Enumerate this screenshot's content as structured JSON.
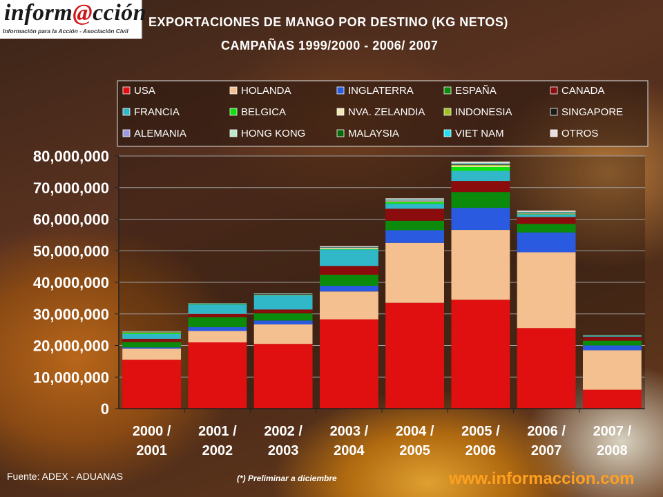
{
  "logo": {
    "brand_pre": "inform",
    "brand_at": "@",
    "brand_post": "cción",
    "tagline": "Información para la Acción - Asociación Civil"
  },
  "title_line1": "EXPORTACIONES DE MANGO POR DESTINO (KG NETOS)",
  "title_line2": "CAMPAÑAS 1999/2000 -  2006/ 2007",
  "footer": {
    "source": "Fuente: ADEX - ADUANAS",
    "note": "(*) Preliminar a diciembre",
    "url": "www.informaccion.com"
  },
  "chart_data": {
    "type": "bar",
    "stacked": true,
    "categories": [
      "2000 / 2001",
      "2001 / 2002",
      "2002 / 2003",
      "2003 / 2004",
      "2004 / 2005",
      "2005 / 2006",
      "2006 / 2007",
      "2007 / 2008"
    ],
    "ylim": [
      0,
      80000000
    ],
    "yticks": [
      0,
      10000000,
      20000000,
      30000000,
      40000000,
      50000000,
      60000000,
      70000000,
      80000000
    ],
    "ytick_labels": [
      "0",
      "10,000,000",
      "20,000,000",
      "30,000,000",
      "40,000,000",
      "50,000,000",
      "60,000,000",
      "70,000,000",
      "80,000,000"
    ],
    "grid": true,
    "legend_position": "top",
    "series": [
      {
        "name": "USA",
        "color": "#e01010",
        "values": [
          15500000,
          21000000,
          20500000,
          28300000,
          33500000,
          34500000,
          25500000,
          6000000
        ]
      },
      {
        "name": "HOLANDA",
        "color": "#f4c090",
        "values": [
          3500000,
          3600000,
          6200000,
          8800000,
          19000000,
          22100000,
          24000000,
          12500000
        ]
      },
      {
        "name": "INGLATERRA",
        "color": "#2a5ae0",
        "values": [
          400000,
          1200000,
          1200000,
          1800000,
          4000000,
          7000000,
          6300000,
          1500000
        ]
      },
      {
        "name": "ESPAÑA",
        "color": "#0c8a0c",
        "values": [
          1700000,
          3200000,
          2300000,
          3500000,
          3000000,
          5000000,
          2700000,
          1500000
        ]
      },
      {
        "name": "CANADA",
        "color": "#8a0c0c",
        "values": [
          1000000,
          1000000,
          1200000,
          2800000,
          3800000,
          3500000,
          2200000,
          1300000
        ]
      },
      {
        "name": "FRANCIA",
        "color": "#30b8c8",
        "values": [
          1500000,
          3000000,
          4500000,
          5200000,
          1600000,
          3200000,
          800000,
          300000
        ]
      },
      {
        "name": "BELGICA",
        "color": "#10e010",
        "values": [
          400000,
          100000,
          100000,
          100000,
          500000,
          1200000,
          100000,
          50000
        ]
      },
      {
        "name": "NVA. ZELANDIA",
        "color": "#f0eab0",
        "values": [
          100000,
          50000,
          100000,
          400000,
          300000,
          400000,
          200000,
          20000
        ]
      },
      {
        "name": "INDONESIA",
        "color": "#a0c020",
        "values": [
          50000,
          0,
          0,
          0,
          0,
          300000,
          0,
          0
        ]
      },
      {
        "name": "SINGAPORE",
        "color": "#1a1a1a",
        "values": [
          50000,
          50000,
          100000,
          50000,
          100000,
          100000,
          100000,
          20000
        ]
      },
      {
        "name": "ALEMANIA",
        "color": "#9a9ae0",
        "values": [
          50000,
          50000,
          50000,
          50000,
          100000,
          100000,
          100000,
          20000
        ]
      },
      {
        "name": "HONG KONG",
        "color": "#b8e8c8",
        "values": [
          50000,
          50000,
          50000,
          50000,
          100000,
          100000,
          100000,
          20000
        ]
      },
      {
        "name": "MALAYSIA",
        "color": "#0a6a0a",
        "values": [
          50000,
          50000,
          50000,
          50000,
          100000,
          100000,
          100000,
          20000
        ]
      },
      {
        "name": "VIET NAM",
        "color": "#20e0f0",
        "values": [
          50000,
          50000,
          50000,
          50000,
          100000,
          100000,
          100000,
          20000
        ]
      },
      {
        "name": "OTROS",
        "color": "#e8e0e0",
        "values": [
          100000,
          50000,
          100000,
          300000,
          400000,
          500000,
          400000,
          50000
        ]
      }
    ]
  }
}
